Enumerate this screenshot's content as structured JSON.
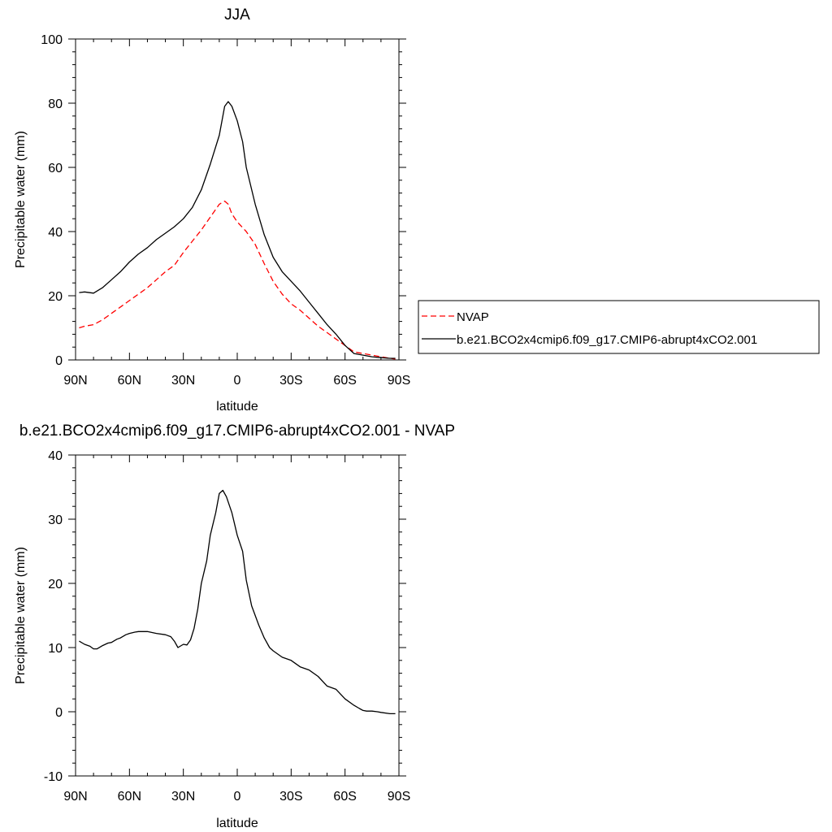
{
  "chart_data": [
    {
      "type": "line",
      "title": "JJA",
      "xlabel": "latitude",
      "ylabel": "Precipitable water (mm)",
      "xlim": [
        -90,
        90
      ],
      "ylim": [
        0,
        100
      ],
      "x_ticks": [
        -90,
        -60,
        -30,
        0,
        30,
        60,
        90
      ],
      "x_tick_labels": [
        "90N",
        "60N",
        "30N",
        "0",
        "30S",
        "60S",
        "90S"
      ],
      "y_ticks": [
        0,
        20,
        40,
        60,
        80,
        100
      ],
      "y_tick_labels": [
        "0",
        "20",
        "40",
        "60",
        "80",
        "100"
      ],
      "legend_position": "right",
      "series": [
        {
          "name": "NVAP",
          "color": "#ff0000",
          "dash": "dashed",
          "x": [
            -88,
            -85,
            -80,
            -75,
            -70,
            -65,
            -60,
            -55,
            -50,
            -45,
            -40,
            -35,
            -30,
            -25,
            -20,
            -15,
            -10,
            -7,
            -5,
            -3,
            0,
            5,
            10,
            15,
            20,
            25,
            30,
            35,
            40,
            45,
            50,
            55,
            60,
            65,
            70,
            75,
            80,
            85,
            88
          ],
          "y": [
            10,
            10.5,
            11,
            12.5,
            14.5,
            16.5,
            18.5,
            20.5,
            22.5,
            25,
            27.5,
            29.5,
            33.5,
            37,
            40.5,
            44.5,
            48.5,
            49.5,
            48.5,
            45.5,
            43,
            40,
            36,
            30,
            24.5,
            20.5,
            17.5,
            15.5,
            13,
            10.5,
            8.5,
            6.5,
            4.5,
            2.5,
            2,
            1.5,
            1,
            0.5,
            0.3
          ]
        },
        {
          "name": "b.e21.BCO2x4cmip6.f09_g17.CMIP6-abrupt4xCO2.001",
          "color": "#000000",
          "dash": "solid",
          "x": [
            -88,
            -85,
            -80,
            -75,
            -70,
            -65,
            -60,
            -55,
            -50,
            -45,
            -40,
            -35,
            -30,
            -25,
            -20,
            -15,
            -10,
            -7,
            -5,
            -3,
            0,
            3,
            5,
            10,
            15,
            20,
            25,
            30,
            35,
            40,
            45,
            50,
            55,
            60,
            65,
            70,
            75,
            80,
            85,
            88
          ],
          "y": [
            21,
            21.2,
            20.8,
            22.5,
            25,
            27.5,
            30.5,
            33,
            35,
            37.5,
            39.5,
            41.5,
            44,
            47.5,
            53,
            61,
            70,
            79,
            80.5,
            79,
            74.5,
            68,
            60,
            48.5,
            39,
            32,
            27.5,
            24.5,
            21.5,
            18,
            14.5,
            11,
            8,
            4.5,
            2,
            1.5,
            1,
            0.7,
            0.5,
            0.5
          ]
        }
      ]
    },
    {
      "type": "line",
      "title": "b.e21.BCO2x4cmip6.f09_g17.CMIP6-abrupt4xCO2.001 - NVAP",
      "xlabel": "latitude",
      "ylabel": "Precipitable water (mm)",
      "xlim": [
        -90,
        90
      ],
      "ylim": [
        -10,
        40
      ],
      "x_ticks": [
        -90,
        -60,
        -30,
        0,
        30,
        60,
        90
      ],
      "x_tick_labels": [
        "90N",
        "60N",
        "30N",
        "0",
        "30S",
        "60S",
        "90S"
      ],
      "y_ticks": [
        -10,
        0,
        10,
        20,
        30,
        40
      ],
      "y_tick_labels": [
        "-10",
        "0",
        "10",
        "20",
        "30",
        "40"
      ],
      "series": [
        {
          "color": "#000000",
          "dash": "solid",
          "x": [
            -88,
            -85,
            -82,
            -80,
            -78,
            -75,
            -72,
            -70,
            -67,
            -65,
            -62,
            -60,
            -57,
            -55,
            -50,
            -45,
            -40,
            -37,
            -35,
            -33,
            -30,
            -28,
            -26,
            -24,
            -22,
            -20,
            -17,
            -15,
            -12,
            -10,
            -8,
            -6,
            -3,
            0,
            3,
            5,
            8,
            10,
            12,
            15,
            18,
            20,
            25,
            30,
            35,
            40,
            45,
            50,
            55,
            60,
            65,
            68,
            70,
            72,
            75,
            78,
            80,
            85,
            88
          ],
          "y": [
            11,
            10.5,
            10.2,
            9.8,
            9.8,
            10.3,
            10.7,
            10.8,
            11.3,
            11.5,
            12,
            12.2,
            12.4,
            12.5,
            12.5,
            12.2,
            12,
            11.7,
            11,
            10,
            10.5,
            10.4,
            11.2,
            13,
            16,
            20,
            23.5,
            27.5,
            31,
            34,
            34.5,
            33.5,
            31,
            27.5,
            25,
            20.5,
            16.5,
            15,
            13.5,
            11.5,
            10,
            9.5,
            8.5,
            8,
            7,
            6.5,
            5.5,
            4,
            3.5,
            2,
            1,
            0.5,
            0.2,
            0.1,
            0.1,
            0,
            -0.1,
            -0.3,
            -0.3
          ]
        }
      ]
    }
  ]
}
